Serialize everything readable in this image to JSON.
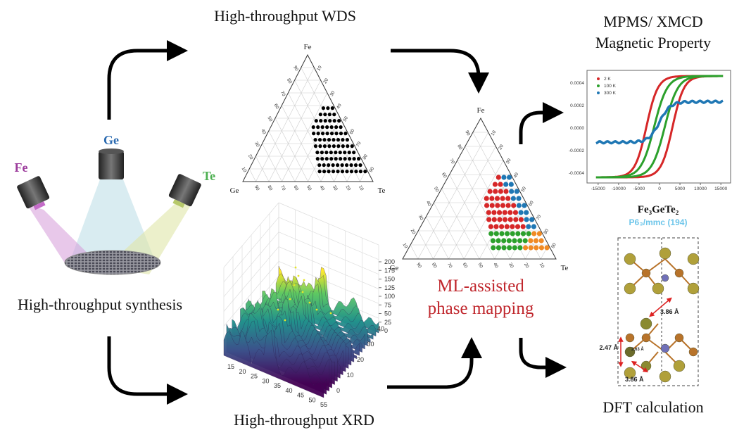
{
  "synthesis": {
    "title": "High-throughput synthesis",
    "elements": [
      "Fe",
      "Ge",
      "Te"
    ]
  },
  "wds": {
    "title": "High-throughput WDS",
    "vertices": [
      "Fe",
      "Ge",
      "Te"
    ],
    "ticks": [
      10,
      20,
      30,
      40,
      50,
      60,
      70,
      80,
      90
    ]
  },
  "xrd": {
    "title": "High-throughput XRD",
    "x_ticks": [
      15,
      20,
      25,
      30,
      35,
      40,
      45,
      50,
      55
    ],
    "y_ticks": [
      0,
      10,
      20,
      30,
      40
    ],
    "z_ticks": [
      0,
      25,
      50,
      75,
      100,
      125,
      150,
      175,
      200
    ]
  },
  "mapping": {
    "title_lines": [
      "ML-assisted",
      "phase mapping"
    ],
    "vertices": [
      "Fe",
      "Ge",
      "Te"
    ],
    "ticks": [
      10,
      20,
      30,
      40,
      50,
      60,
      70,
      80,
      90
    ]
  },
  "magnetic": {
    "title_lines": [
      "MPMS/ XMCD",
      "Magnetic Property"
    ],
    "legend": [
      "2 K",
      "100 K",
      "300 K"
    ],
    "x_ticks": [
      -15000,
      -10000,
      -5000,
      0,
      5000,
      10000,
      15000
    ],
    "y_ticks": [
      "0.0004",
      "0.0002",
      "0.0000",
      "-0.0002",
      "-0.0004"
    ]
  },
  "dft": {
    "title": "DFT calculation",
    "formula": "Fe₃GeTe₂",
    "space_group": "P6₃/mmc (194)",
    "distances": [
      "3.86 Å",
      "2.47 Å",
      "2.63 Å",
      "3.86 Å"
    ]
  }
}
